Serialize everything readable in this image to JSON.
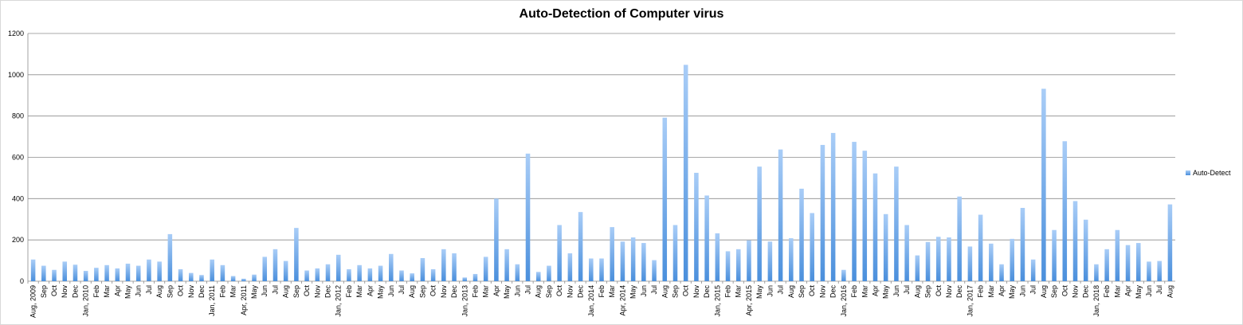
{
  "chart_data": {
    "type": "bar",
    "title": "Auto-Detection of Computer virus",
    "xlabel": "",
    "ylabel": "",
    "ylim": [
      0,
      1200
    ],
    "yticks": [
      0,
      200,
      400,
      600,
      800,
      1000,
      1200
    ],
    "grid": true,
    "legend_position": "right",
    "categories": [
      "Aug, 2009",
      "Sep",
      "Oct",
      "Nov",
      "Dec",
      "Jan, 2010",
      "Feb",
      "Mar",
      "Apr",
      "May",
      "Jun",
      "Jul",
      "Aug",
      "Sep",
      "Oct",
      "Nov",
      "Dec",
      "Jan, 2011",
      "Feb",
      "Mar",
      "Apr, 2011",
      "May",
      "Jun",
      "Jul",
      "Aug",
      "Sep",
      "Oct",
      "Nov",
      "Dec",
      "Jan, 2012",
      "Feb",
      "Mar",
      "Apr",
      "May",
      "Jun",
      "Jul",
      "Aug",
      "Sep",
      "Oct",
      "Nov",
      "Dec",
      "Jan, 2013",
      "Feb",
      "Mar",
      "Apr",
      "May",
      "Jun",
      "Jul",
      "Aug",
      "Sep",
      "Oct",
      "Nov",
      "Dec",
      "Jan, 2014",
      "Feb",
      "Mar",
      "Apr, 2014",
      "May",
      "Jun",
      "Jul",
      "Aug",
      "Sep",
      "Oct",
      "Nov",
      "Dec",
      "Jan, 2015",
      "Feb",
      "Mar",
      "Apr, 2015",
      "May",
      "Jun",
      "Jul",
      "Aug",
      "Sep",
      "Oct",
      "Nov",
      "Dec",
      "Jan, 2016",
      "Feb",
      "Mar",
      "Apr",
      "May",
      "Jun",
      "Jul",
      "Aug",
      "Sep",
      "Oct",
      "Nov",
      "Dec",
      "Jan, 2017",
      "Feb",
      "Mar",
      "Apr",
      "May",
      "Jun",
      "Jul",
      "Aug",
      "Sep",
      "Oct",
      "Nov",
      "Dec",
      "Jan, 2018",
      "Feb",
      "Mar",
      "Apr",
      "May",
      "Jun",
      "Jul",
      "Aug"
    ],
    "series": [
      {
        "name": "Auto-Detect",
        "color": "#6fa8e8",
        "values": [
          105,
          75,
          55,
          95,
          80,
          50,
          65,
          78,
          62,
          85,
          75,
          105,
          95,
          228,
          58,
          40,
          30,
          105,
          78,
          25,
          12,
          32,
          118,
          155,
          98,
          258,
          52,
          62,
          82,
          128,
          58,
          78,
          62,
          75,
          132,
          52,
          38,
          112,
          58,
          155,
          135,
          18,
          35,
          118,
          400,
          155,
          82,
          618,
          45,
          75,
          272,
          135,
          335,
          110,
          110,
          262,
          192,
          212,
          185,
          102,
          792,
          272,
          1048,
          525,
          415,
          232,
          145,
          155,
          198,
          555,
          192,
          638,
          208,
          448,
          330,
          660,
          718,
          55,
          675,
          632,
          522,
          325,
          555,
          272,
          125,
          190,
          215,
          212,
          410,
          168,
          322,
          182,
          82,
          205,
          355,
          105,
          932,
          248,
          678,
          388,
          298,
          82,
          155,
          248,
          175,
          185,
          95,
          98,
          372
        ]
      }
    ]
  }
}
